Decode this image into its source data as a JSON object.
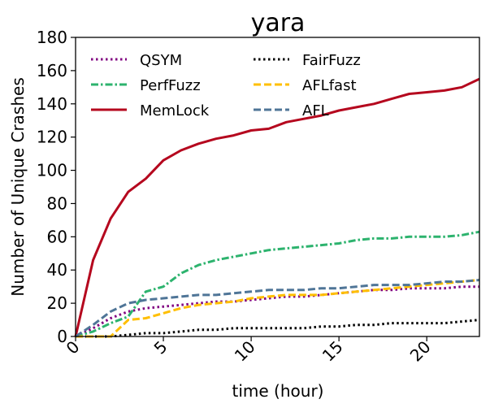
{
  "chart_data": {
    "type": "line",
    "title": "yara",
    "xlabel": "time (hour)",
    "ylabel": "Number of Unique Crashes",
    "xlim": [
      0,
      23
    ],
    "ylim": [
      0,
      180
    ],
    "xticks": [
      0,
      5,
      10,
      15,
      20
    ],
    "yticks": [
      0,
      20,
      40,
      60,
      80,
      100,
      120,
      140,
      160,
      180
    ],
    "grid": false,
    "legend_placement": "upper-left",
    "legend_columns": 2,
    "series": [
      {
        "name": "QSYM",
        "color": "#800080",
        "style": "dotted",
        "x": [
          0,
          1,
          2,
          3,
          4,
          5,
          6,
          7,
          8,
          9,
          10,
          11,
          12,
          13,
          14,
          15,
          16,
          17,
          18,
          19,
          20,
          21,
          22,
          23
        ],
        "y": [
          0,
          5,
          11,
          15,
          17,
          18,
          19,
          20,
          21,
          21,
          22,
          23,
          24,
          24,
          25,
          26,
          27,
          28,
          28,
          29,
          29,
          29,
          30,
          30
        ]
      },
      {
        "name": "PerfFuzz",
        "color": "#2db36e",
        "style": "dashdot",
        "x": [
          0,
          1,
          2,
          3,
          4,
          5,
          6,
          7,
          8,
          9,
          10,
          11,
          12,
          13,
          14,
          15,
          16,
          17,
          18,
          19,
          20,
          21,
          22,
          23
        ],
        "y": [
          0,
          3,
          8,
          12,
          27,
          30,
          38,
          43,
          46,
          48,
          50,
          52,
          53,
          54,
          55,
          56,
          58,
          59,
          59,
          60,
          60,
          60,
          61,
          63
        ]
      },
      {
        "name": "MemLock",
        "color": "#b5071e",
        "style": "solid",
        "x": [
          0,
          1,
          2,
          3,
          4,
          5,
          6,
          7,
          8,
          9,
          10,
          11,
          12,
          13,
          14,
          15,
          16,
          17,
          18,
          19,
          20,
          21,
          22,
          23
        ],
        "y": [
          0,
          46,
          71,
          87,
          95,
          106,
          112,
          116,
          119,
          121,
          124,
          125,
          129,
          131,
          133,
          136,
          138,
          140,
          143,
          146,
          147,
          148,
          150,
          155
        ]
      },
      {
        "name": "FairFuzz",
        "color": "#000000",
        "style": "dotted",
        "x": [
          0,
          1,
          2,
          3,
          4,
          5,
          6,
          7,
          8,
          9,
          10,
          11,
          12,
          13,
          14,
          15,
          16,
          17,
          18,
          19,
          20,
          21,
          22,
          23
        ],
        "y": [
          0,
          0,
          0,
          1,
          2,
          2,
          3,
          4,
          4,
          5,
          5,
          5,
          5,
          5,
          6,
          6,
          7,
          7,
          8,
          8,
          8,
          8,
          9,
          10
        ]
      },
      {
        "name": "AFLfast",
        "color": "#ffbf00",
        "style": "dashed",
        "x": [
          0,
          1,
          2,
          3,
          4,
          5,
          6,
          7,
          8,
          9,
          10,
          11,
          12,
          13,
          14,
          15,
          16,
          17,
          18,
          19,
          20,
          21,
          22,
          23
        ],
        "y": [
          0,
          0,
          0,
          10,
          11,
          14,
          17,
          19,
          20,
          21,
          23,
          24,
          25,
          25,
          25,
          26,
          27,
          28,
          29,
          30,
          31,
          32,
          33,
          34
        ]
      },
      {
        "name": "AFL",
        "color": "#4f7597",
        "style": "dashed",
        "x": [
          0,
          1,
          2,
          3,
          4,
          5,
          6,
          7,
          8,
          9,
          10,
          11,
          12,
          13,
          14,
          15,
          16,
          17,
          18,
          19,
          20,
          21,
          22,
          23
        ],
        "y": [
          0,
          7,
          15,
          20,
          22,
          23,
          24,
          25,
          25,
          26,
          27,
          28,
          28,
          28,
          29,
          29,
          30,
          31,
          31,
          31,
          32,
          33,
          33,
          34
        ]
      }
    ]
  }
}
